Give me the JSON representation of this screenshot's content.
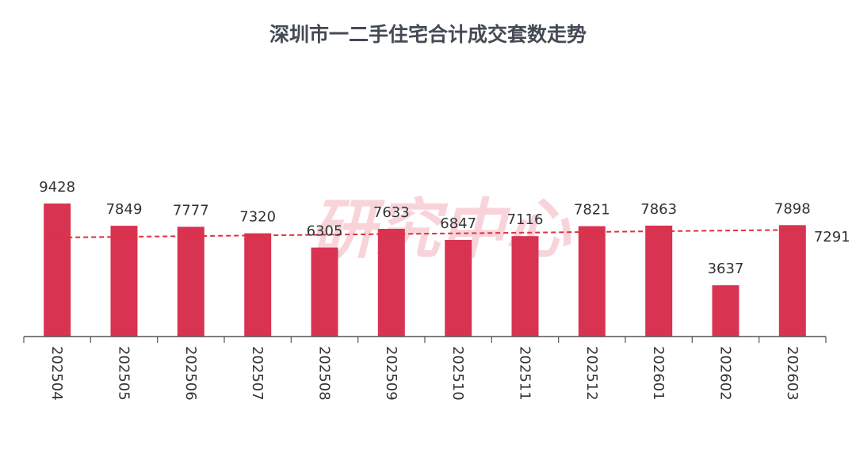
{
  "chart_data": {
    "type": "bar",
    "title": "深圳市一二手住宅合计成交套数走势",
    "xlabel": "",
    "ylabel": "",
    "categories": [
      "202504",
      "202505",
      "202506",
      "202507",
      "202508",
      "202509",
      "202510",
      "202511",
      "202512",
      "202601",
      "202602",
      "202603"
    ],
    "values": [
      9428,
      7849,
      7777,
      7320,
      6305,
      7633,
      6847,
      7116,
      7821,
      7863,
      3637,
      7898
    ],
    "ylim": [
      0,
      10000
    ],
    "average": 7291,
    "average_label": "7291",
    "grid": false,
    "legend": "none",
    "watermark": "研究中心",
    "colors": {
      "bar": "#d93352",
      "average_line": "#e0303a",
      "axis": "#555555",
      "title": "#444a55",
      "text": "#333333"
    }
  }
}
